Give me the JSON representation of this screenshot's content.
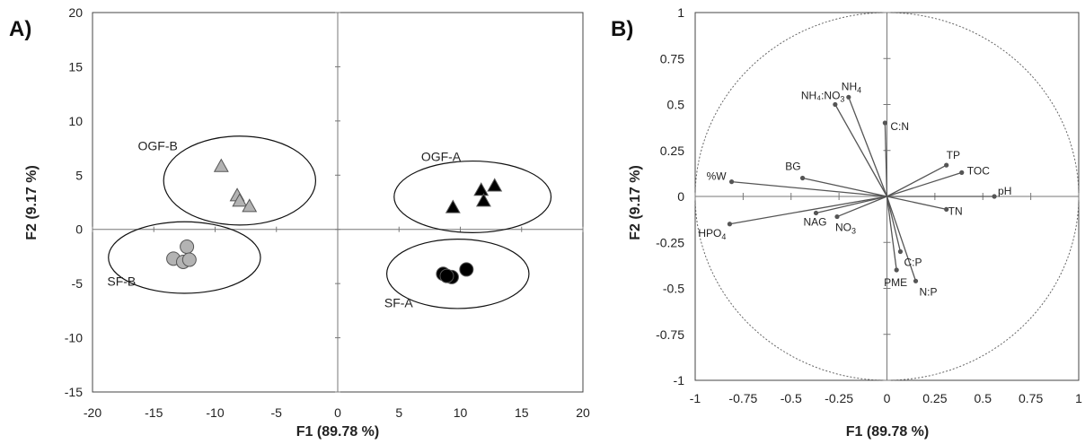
{
  "chart_data": [
    {
      "panel_label": "A)",
      "type": "scatter",
      "xlabel": "F1 (89.78 %)",
      "ylabel": "F2 (9.17 %)",
      "xlim": [
        -20,
        20
      ],
      "ylim": [
        -15,
        20
      ],
      "xticks": [
        "-20",
        "-15",
        "-10",
        "-5",
        "0",
        "5",
        "10",
        "15",
        "20"
      ],
      "yticks": [
        "-15",
        "-10",
        "-5",
        "0",
        "5",
        "10",
        "15",
        "20"
      ],
      "series": [
        {
          "name": "OGF-B",
          "marker": "triangle",
          "color": "#b3b3b3",
          "points": [
            [
              -9.5,
              5.8
            ],
            [
              -8.2,
              3.1
            ],
            [
              -8.0,
              2.6
            ],
            [
              -7.2,
              2.1
            ]
          ]
        },
        {
          "name": "SF-B",
          "marker": "circle",
          "color": "#b3b3b3",
          "points": [
            [
              -12.3,
              -1.6
            ],
            [
              -13.4,
              -2.7
            ],
            [
              -12.6,
              -3.0
            ],
            [
              -12.1,
              -2.8
            ]
          ]
        },
        {
          "name": "OGF-A",
          "marker": "triangle",
          "color": "#000000",
          "points": [
            [
              9.4,
              2.0
            ],
            [
              11.7,
              3.6
            ],
            [
              12.8,
              4.0
            ],
            [
              11.9,
              2.6
            ]
          ]
        },
        {
          "name": "SF-A",
          "marker": "circle",
          "color": "#000000",
          "points": [
            [
              8.6,
              -4.1
            ],
            [
              9.3,
              -4.4
            ],
            [
              10.5,
              -3.7
            ],
            [
              8.9,
              -4.3
            ]
          ]
        }
      ],
      "group_labels": [
        {
          "text": "OGF-B",
          "x": -16.3,
          "y": 7.3
        },
        {
          "text": "SF-B",
          "x": -18.8,
          "y": -5.2
        },
        {
          "text": "OGF-A",
          "x": 6.8,
          "y": 6.3
        },
        {
          "text": "SF-A",
          "x": 3.8,
          "y": -7.2
        }
      ],
      "ellipses": [
        {
          "group": "OGF-B",
          "cx": -8.0,
          "cy": 4.5,
          "rx": 6.2,
          "ry": 4.1
        },
        {
          "group": "SF-B",
          "cx": -12.5,
          "cy": -2.6,
          "rx": 6.2,
          "ry": 3.3
        },
        {
          "group": "OGF-A",
          "cx": 11.0,
          "cy": 3.0,
          "rx": 6.4,
          "ry": 3.3
        },
        {
          "group": "SF-A",
          "cx": 9.8,
          "cy": -4.1,
          "rx": 5.8,
          "ry": 3.2
        }
      ]
    },
    {
      "panel_label": "B)",
      "type": "scatter",
      "xlabel": "F1 (89.78 %)",
      "ylabel": "F2 (9.17 %)",
      "xlim": [
        -1,
        1
      ],
      "ylim": [
        -1,
        1
      ],
      "xticks": [
        "-1",
        "-0.75",
        "-0.5",
        "-0.25",
        "0",
        "0.25",
        "0.5",
        "0.75",
        "1"
      ],
      "yticks": [
        "-1",
        "-0.75",
        "-0.5",
        "-0.25",
        "0",
        "0.25",
        "0.5",
        "0.75",
        "1"
      ],
      "circle_radius": 1,
      "vectors": [
        {
          "label": "%W",
          "x": -0.81,
          "y": 0.08
        },
        {
          "label": "HPO",
          "sub": "4",
          "x": -0.82,
          "y": -0.15
        },
        {
          "label": "BG",
          "x": -0.44,
          "y": 0.1
        },
        {
          "label": "NAG",
          "x": -0.37,
          "y": -0.09
        },
        {
          "label": "NO",
          "sub": "3",
          "x": -0.26,
          "y": -0.11
        },
        {
          "label": "NH",
          "sub": "4",
          "x": -0.2,
          "y": 0.54
        },
        {
          "label": "NH₄:NO",
          "sub": "3",
          "x": -0.27,
          "y": 0.5
        },
        {
          "label": "C:N",
          "x": -0.01,
          "y": 0.4
        },
        {
          "label": "TP",
          "x": 0.31,
          "y": 0.17
        },
        {
          "label": "TOC",
          "x": 0.39,
          "y": 0.13
        },
        {
          "label": "pH",
          "x": 0.56,
          "y": 0.0
        },
        {
          "label": "TN",
          "x": 0.31,
          "y": -0.07
        },
        {
          "label": "C:P",
          "x": 0.07,
          "y": -0.3
        },
        {
          "label": "PME",
          "x": 0.05,
          "y": -0.4
        },
        {
          "label": "N:P",
          "x": 0.15,
          "y": -0.46
        }
      ]
    }
  ]
}
